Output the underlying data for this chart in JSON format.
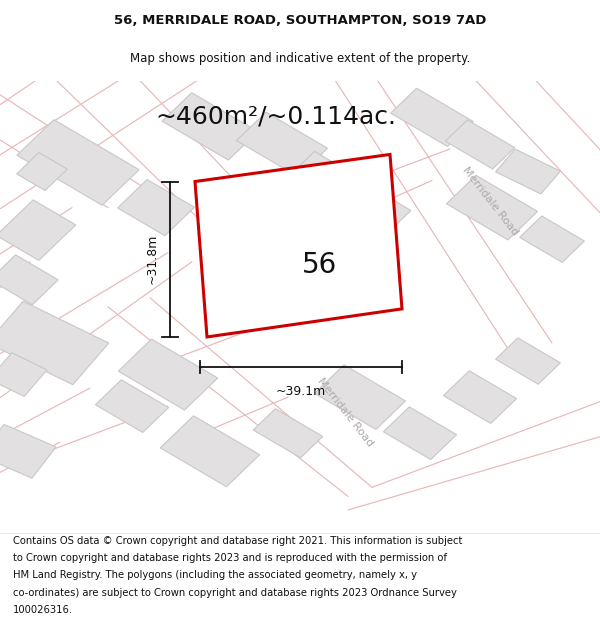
{
  "title_line1": "56, MERRIDALE ROAD, SOUTHAMPTON, SO19 7AD",
  "title_line2": "Map shows position and indicative extent of the property.",
  "area_text": "~460m²/~0.114ac.",
  "property_number": "56",
  "dim_vertical": "~31.8m",
  "dim_horizontal": "~39.1m",
  "road_label_top": "Merridale Road",
  "road_label_bottom": "Merridale Road",
  "footer_lines": [
    "Contains OS data © Crown copyright and database right 2021. This information is subject",
    "to Crown copyright and database rights 2023 and is reproduced with the permission of",
    "HM Land Registry. The polygons (including the associated geometry, namely x, y",
    "co-ordinates) are subject to Crown copyright and database rights 2023 Ordnance Survey",
    "100026316."
  ],
  "bg_color": "#ffffff",
  "map_bg": "#f9f8f8",
  "building_fill": "#e2e0e0",
  "building_outline": "#c8c8c8",
  "road_line_color": "#e8b8b8",
  "highlight_color": "#cc0000",
  "highlight_fill": "#ffffff",
  "dim_color": "#111111",
  "text_color": "#111111",
  "road_text_color": "#b0a8a8",
  "title_fontsize": 9.5,
  "subtitle_fontsize": 8.5,
  "area_fontsize": 18,
  "number_fontsize": 20,
  "dim_fontsize": 9,
  "road_label_fontsize": 8,
  "footer_fontsize": 7.2
}
